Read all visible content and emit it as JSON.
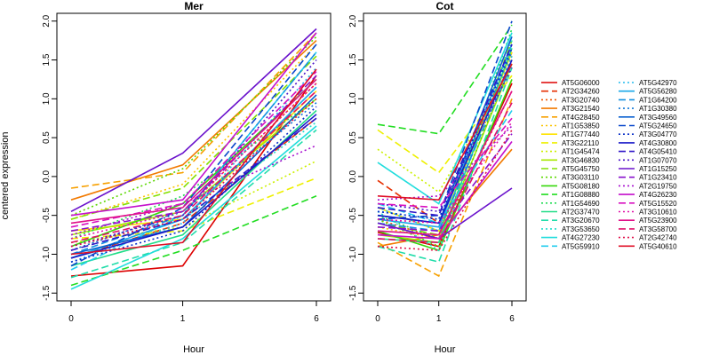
{
  "chart_data": {
    "type": "line",
    "x": [
      "0",
      "1",
      "6"
    ],
    "xlabel": "Hour",
    "ylabel": "centered expression",
    "ylim": [
      -1.6,
      2.1
    ],
    "yticks": [
      "-1.5",
      "-1.0",
      "-0.5",
      "0.0",
      "0.5",
      "1.0",
      "1.5",
      "2.0"
    ],
    "grid": false,
    "legend_position": "right",
    "panels": [
      {
        "title": "Mer",
        "series": [
          {
            "name": "AT5G06000",
            "color": "#dd0000",
            "dash": "solid",
            "values": [
              -1.28,
              -1.15,
              1.3
            ]
          },
          {
            "name": "AT2G34260",
            "color": "#e62f00",
            "dash": "longdash",
            "values": [
              -1.05,
              -0.6,
              0.75
            ]
          },
          {
            "name": "AT3G20740",
            "color": "#ee5500",
            "dash": "dotted",
            "values": [
              -0.95,
              -0.45,
              1.2
            ]
          },
          {
            "name": "AT3G21540",
            "color": "#f27a00",
            "dash": "solid",
            "values": [
              -0.3,
              0.15,
              1.75
            ]
          },
          {
            "name": "AT4G28450",
            "color": "#f7a000",
            "dash": "longdash",
            "values": [
              -0.15,
              0.05,
              1.85
            ]
          },
          {
            "name": "AT1G53850",
            "color": "#fbc400",
            "dash": "dotted",
            "values": [
              -0.55,
              -0.1,
              1.7
            ]
          },
          {
            "name": "AT1G77440",
            "color": "#ffe400",
            "dash": "solid",
            "values": [
              -0.7,
              -0.55,
              1.1
            ]
          },
          {
            "name": "AT3G22110",
            "color": "#eef000",
            "dash": "longdash",
            "values": [
              -0.8,
              -0.7,
              -0.02
            ]
          },
          {
            "name": "AT1G45474",
            "color": "#ccf000",
            "dash": "dotted",
            "values": [
              -0.85,
              -0.65,
              0.2
            ]
          },
          {
            "name": "AT3G46830",
            "color": "#a8e800",
            "dash": "solid",
            "values": [
              -0.75,
              -0.45,
              1.0
            ]
          },
          {
            "name": "AT5G45750",
            "color": "#84e000",
            "dash": "longdash",
            "values": [
              -0.55,
              -0.15,
              1.55
            ]
          },
          {
            "name": "AT3G03110",
            "color": "#5cd800",
            "dash": "dotted",
            "values": [
              -0.5,
              0.1,
              1.8
            ]
          },
          {
            "name": "AT5G08180",
            "color": "#36d80a",
            "dash": "solid",
            "values": [
              -0.9,
              -0.35,
              1.25
            ]
          },
          {
            "name": "AT1G08880",
            "color": "#22dd22",
            "dash": "longdash",
            "values": [
              -1.4,
              -0.95,
              -0.25
            ]
          },
          {
            "name": "AT1G54690",
            "color": "#22dd55",
            "dash": "dotted",
            "values": [
              -0.8,
              -0.25,
              1.0
            ]
          },
          {
            "name": "AT2G37470",
            "color": "#22dd88",
            "dash": "solid",
            "values": [
              -1.15,
              -0.75,
              0.85
            ]
          },
          {
            "name": "AT3G20670",
            "color": "#22ddaa",
            "dash": "longdash",
            "values": [
              -1.3,
              -0.85,
              0.6
            ]
          },
          {
            "name": "AT3G53650",
            "color": "#22ddcc",
            "dash": "dotted",
            "values": [
              -1.05,
              -0.55,
              0.7
            ]
          },
          {
            "name": "AT4G27230",
            "color": "#22dddd",
            "dash": "solid",
            "values": [
              -1.45,
              -0.8,
              0.65
            ]
          },
          {
            "name": "AT5G59910",
            "color": "#22ccee",
            "dash": "longdash",
            "values": [
              -1.2,
              -0.5,
              1.6
            ]
          },
          {
            "name": "AT5G42970",
            "color": "#22bbee",
            "dash": "dotted",
            "values": [
              -1.1,
              -0.6,
              1.4
            ]
          },
          {
            "name": "AT5G56280",
            "color": "#1aa8e8",
            "dash": "solid",
            "values": [
              -1.05,
              -0.55,
              1.15
            ]
          },
          {
            "name": "AT1G64200",
            "color": "#1590e0",
            "dash": "longdash",
            "values": [
              -1.0,
              -0.5,
              1.6
            ]
          },
          {
            "name": "AT1G30380",
            "color": "#1078d8",
            "dash": "dotted",
            "values": [
              -0.95,
              -0.45,
              0.95
            ]
          },
          {
            "name": "AT3G49560",
            "color": "#0a60d0",
            "dash": "solid",
            "values": [
              -1.0,
              -0.65,
              1.05
            ]
          },
          {
            "name": "AT5G24650",
            "color": "#0a48cc",
            "dash": "longdash",
            "values": [
              -1.15,
              -0.4,
              1.7
            ]
          },
          {
            "name": "AT3G04770",
            "color": "#0a30c8",
            "dash": "dotted",
            "values": [
              -1.1,
              -0.7,
              0.9
            ]
          },
          {
            "name": "AT4G30800",
            "color": "#1a1ac8",
            "dash": "solid",
            "values": [
              -1.05,
              -0.65,
              0.8
            ]
          },
          {
            "name": "AT4G05410",
            "color": "#3016c8",
            "dash": "longdash",
            "values": [
              -0.95,
              -0.55,
              0.75
            ]
          },
          {
            "name": "AT1G07070",
            "color": "#4a14c8",
            "dash": "dotted",
            "values": [
              -0.9,
              -0.5,
              1.5
            ]
          },
          {
            "name": "AT1G15250",
            "color": "#6a12cc",
            "dash": "solid",
            "values": [
              -0.45,
              0.3,
              1.9
            ]
          },
          {
            "name": "AT1G23410",
            "color": "#8810cc",
            "dash": "longdash",
            "values": [
              -0.7,
              -0.45,
              1.3
            ]
          },
          {
            "name": "AT2G19750",
            "color": "#a810d0",
            "dash": "dotted",
            "values": [
              -0.75,
              -0.35,
              0.4
            ]
          },
          {
            "name": "AT4G26230",
            "color": "#c410cc",
            "dash": "solid",
            "values": [
              -0.5,
              -0.3,
              1.85
            ]
          },
          {
            "name": "AT5G15520",
            "color": "#d810c0",
            "dash": "longdash",
            "values": [
              -0.65,
              -0.35,
              1.35
            ]
          },
          {
            "name": "AT3G10610",
            "color": "#e010a8",
            "dash": "dotted",
            "values": [
              -0.8,
              -0.45,
              1.2
            ]
          },
          {
            "name": "AT5G23900",
            "color": "#e0108a",
            "dash": "solid",
            "values": [
              -0.6,
              -0.4,
              1.25
            ]
          },
          {
            "name": "AT3G58700",
            "color": "#e0106a",
            "dash": "longdash",
            "values": [
              -0.85,
              -0.5,
              1.1
            ]
          },
          {
            "name": "AT2G42740",
            "color": "#e0104a",
            "dash": "dotted",
            "values": [
              -0.9,
              -0.55,
              1.0
            ]
          },
          {
            "name": "AT5G40610",
            "color": "#e01028",
            "dash": "solid",
            "values": [
              -1.0,
              -0.85,
              1.38
            ]
          }
        ]
      },
      {
        "title": "Cot",
        "series": [
          {
            "name": "AT5G06000",
            "color": "#dd0000",
            "dash": "solid",
            "values": [
              -0.72,
              -0.9,
              1.2
            ]
          },
          {
            "name": "AT2G34260",
            "color": "#e62f00",
            "dash": "longdash",
            "values": [
              -0.05,
              -0.6,
              1.6
            ]
          },
          {
            "name": "AT3G20740",
            "color": "#ee5500",
            "dash": "dotted",
            "values": [
              -0.55,
              -0.8,
              1.1
            ]
          },
          {
            "name": "AT3G21540",
            "color": "#f27a00",
            "dash": "solid",
            "values": [
              -0.9,
              -0.75,
              0.35
            ]
          },
          {
            "name": "AT4G28450",
            "color": "#f7a000",
            "dash": "longdash",
            "values": [
              -0.85,
              -1.28,
              1.0
            ]
          },
          {
            "name": "AT1G53850",
            "color": "#fbc400",
            "dash": "dotted",
            "values": [
              -0.65,
              -0.8,
              1.55
            ]
          },
          {
            "name": "AT1G77440",
            "color": "#ffe400",
            "dash": "solid",
            "values": [
              -0.4,
              -0.7,
              1.6
            ]
          },
          {
            "name": "AT3G22110",
            "color": "#eef000",
            "dash": "longdash",
            "values": [
              0.6,
              0.05,
              1.3
            ]
          },
          {
            "name": "AT1G45474",
            "color": "#ccf000",
            "dash": "dotted",
            "values": [
              0.35,
              -0.2,
              1.4
            ]
          },
          {
            "name": "AT3G46830",
            "color": "#a8e800",
            "dash": "solid",
            "values": [
              -0.75,
              -0.85,
              1.45
            ]
          },
          {
            "name": "AT5G45750",
            "color": "#84e000",
            "dash": "longdash",
            "values": [
              -0.6,
              -0.75,
              1.75
            ]
          },
          {
            "name": "AT3G03110",
            "color": "#5cd800",
            "dash": "dotted",
            "values": [
              -0.55,
              -0.9,
              1.5
            ]
          },
          {
            "name": "AT5G08180",
            "color": "#36d80a",
            "dash": "solid",
            "values": [
              -0.7,
              -0.95,
              1.25
            ]
          },
          {
            "name": "AT1G08880",
            "color": "#22dd22",
            "dash": "longdash",
            "values": [
              0.67,
              0.55,
              1.95
            ]
          },
          {
            "name": "AT1G54690",
            "color": "#22dd55",
            "dash": "dotted",
            "values": [
              -0.5,
              -0.8,
              1.9
            ]
          },
          {
            "name": "AT2G37470",
            "color": "#22dd88",
            "dash": "solid",
            "values": [
              -0.8,
              -0.85,
              1.65
            ]
          },
          {
            "name": "AT3G20670",
            "color": "#22ddaa",
            "dash": "longdash",
            "values": [
              -0.9,
              -1.1,
              1.4
            ]
          },
          {
            "name": "AT3G53650",
            "color": "#22ddcc",
            "dash": "dotted",
            "values": [
              -0.45,
              -0.95,
              1.75
            ]
          },
          {
            "name": "AT4G27230",
            "color": "#22dddd",
            "dash": "solid",
            "values": [
              0.18,
              -0.35,
              1.85
            ]
          },
          {
            "name": "AT5G59910",
            "color": "#22ccee",
            "dash": "longdash",
            "values": [
              -0.35,
              -0.6,
              0.85
            ]
          },
          {
            "name": "AT5G42970",
            "color": "#22bbee",
            "dash": "dotted",
            "values": [
              -0.4,
              -0.7,
              1.55
            ]
          },
          {
            "name": "AT5G56280",
            "color": "#1aa8e8",
            "dash": "solid",
            "values": [
              -0.55,
              -0.65,
              1.7
            ]
          },
          {
            "name": "AT1G64200",
            "color": "#1590e0",
            "dash": "longdash",
            "values": [
              -0.6,
              -0.7,
              1.45
            ]
          },
          {
            "name": "AT1G30380",
            "color": "#1078d8",
            "dash": "dotted",
            "values": [
              -0.45,
              -0.55,
              1.6
            ]
          },
          {
            "name": "AT3G49560",
            "color": "#0a60d0",
            "dash": "solid",
            "values": [
              -0.5,
              -0.6,
              1.8
            ]
          },
          {
            "name": "AT5G24650",
            "color": "#0a48cc",
            "dash": "longdash",
            "values": [
              -0.55,
              -0.5,
              2.0
            ]
          },
          {
            "name": "AT3G04770",
            "color": "#0a30c8",
            "dash": "dotted",
            "values": [
              -0.45,
              -0.55,
              1.65
            ]
          },
          {
            "name": "AT4G30800",
            "color": "#1a1ac8",
            "dash": "solid",
            "values": [
              -0.5,
              -0.6,
              1.5
            ]
          },
          {
            "name": "AT4G05410",
            "color": "#3016c8",
            "dash": "longdash",
            "values": [
              -0.4,
              -0.5,
              1.7
            ]
          },
          {
            "name": "AT1G07070",
            "color": "#4a14c8",
            "dash": "dotted",
            "values": [
              -0.35,
              -0.45,
              1.4
            ]
          },
          {
            "name": "AT1G15250",
            "color": "#6a12cc",
            "dash": "solid",
            "values": [
              -0.6,
              -0.8,
              -0.15
            ]
          },
          {
            "name": "AT1G23410",
            "color": "#8810cc",
            "dash": "longdash",
            "values": [
              -0.65,
              -0.7,
              0.55
            ]
          },
          {
            "name": "AT2G19750",
            "color": "#a810d0",
            "dash": "dotted",
            "values": [
              -0.3,
              -0.25,
              0.65
            ]
          },
          {
            "name": "AT4G26230",
            "color": "#c410cc",
            "dash": "solid",
            "values": [
              -0.75,
              -0.8,
              0.45
            ]
          },
          {
            "name": "AT5G15520",
            "color": "#d810c0",
            "dash": "longdash",
            "values": [
              -0.35,
              -0.4,
              0.75
            ]
          },
          {
            "name": "AT3G10610",
            "color": "#e010a8",
            "dash": "dotted",
            "values": [
              -0.55,
              -0.6,
              0.7
            ]
          },
          {
            "name": "AT5G23900",
            "color": "#e0108a",
            "dash": "solid",
            "values": [
              -0.7,
              -0.75,
              1.1
            ]
          },
          {
            "name": "AT3G58700",
            "color": "#e0106a",
            "dash": "longdash",
            "values": [
              -0.8,
              -0.85,
              0.95
            ]
          },
          {
            "name": "AT2G42740",
            "color": "#e0104a",
            "dash": "dotted",
            "values": [
              -0.9,
              -0.95,
              0.6
            ]
          },
          {
            "name": "AT5G40610",
            "color": "#e01028",
            "dash": "solid",
            "values": [
              -0.25,
              -0.3,
              1.45
            ]
          }
        ]
      }
    ]
  }
}
